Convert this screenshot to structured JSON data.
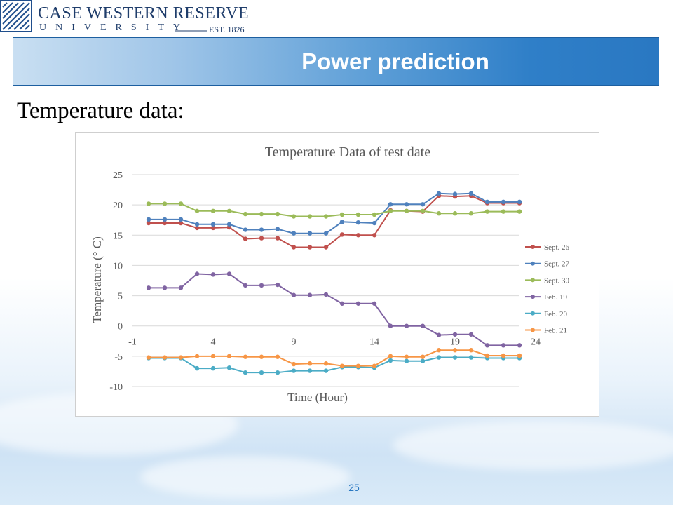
{
  "header": {
    "logo_line1": "CASE WESTERN RESERVE",
    "logo_line2": "UNIVERSITY",
    "logo_est": "EST. 1826",
    "logo_icon": "shield-emblem-icon"
  },
  "slide": {
    "title": "Power prediction",
    "subtitle": "Temperature data:",
    "page_number": "25"
  },
  "colors": {
    "banner_text": "#ffffff",
    "page_number": "#2a78c2",
    "Sept. 26": "#c0504d",
    "Sept. 27": "#4f81bd",
    "Sept. 30": "#9bbb59",
    "Feb. 19": "#8064a2",
    "Feb. 20": "#4bacc6",
    "Feb. 21": "#f79646"
  },
  "chart_data": {
    "type": "line",
    "title": "Temperature Data of test date",
    "xlabel": "Time (Hour)",
    "ylabel": "Temperature (° C)",
    "ylim": [
      -10,
      25
    ],
    "yticks": [
      "25",
      "20",
      "15",
      "10",
      "5",
      "0",
      "-5",
      "-10"
    ],
    "xtick_labels": [
      "-1",
      "4",
      "9",
      "14",
      "19",
      "24"
    ],
    "xtick_hours": [
      -1,
      4,
      9,
      14,
      19,
      24
    ],
    "x": [
      0,
      1,
      2,
      3,
      4,
      5,
      6,
      7,
      8,
      9,
      10,
      11,
      12,
      13,
      14,
      15,
      16,
      17,
      18,
      19,
      20,
      21,
      22,
      23
    ],
    "grid": true,
    "legend_position": "right",
    "series": [
      {
        "name": "Sept. 26",
        "values": [
          17.0,
          17.0,
          17.0,
          16.2,
          16.2,
          16.3,
          14.4,
          14.5,
          14.5,
          13.0,
          13.0,
          13.0,
          15.1,
          15.0,
          15.0,
          19.1,
          19.0,
          18.9,
          21.5,
          21.4,
          21.5,
          20.3,
          20.3,
          20.3
        ]
      },
      {
        "name": "Sept. 27",
        "values": [
          17.6,
          17.6,
          17.6,
          16.8,
          16.8,
          16.8,
          15.9,
          15.9,
          16.0,
          15.3,
          15.3,
          15.3,
          17.2,
          17.1,
          17.0,
          20.1,
          20.1,
          20.1,
          21.9,
          21.8,
          21.9,
          20.5,
          20.5,
          20.5
        ]
      },
      {
        "name": "Sept. 30",
        "values": [
          20.2,
          20.2,
          20.2,
          19.0,
          19.0,
          19.0,
          18.5,
          18.5,
          18.5,
          18.1,
          18.1,
          18.1,
          18.4,
          18.4,
          18.4,
          19.0,
          19.0,
          19.0,
          18.6,
          18.6,
          18.6,
          18.9,
          18.9,
          18.9
        ]
      },
      {
        "name": "Feb. 19",
        "values": [
          6.3,
          6.3,
          6.3,
          8.6,
          8.5,
          8.6,
          6.7,
          6.7,
          6.8,
          5.1,
          5.1,
          5.2,
          3.7,
          3.7,
          3.7,
          0.0,
          0.0,
          0.0,
          -1.5,
          -1.4,
          -1.4,
          -3.2,
          -3.2,
          -3.2
        ]
      },
      {
        "name": "Feb. 20",
        "values": [
          -5.3,
          -5.3,
          -5.3,
          -7.0,
          -7.0,
          -6.9,
          -7.7,
          -7.7,
          -7.7,
          -7.4,
          -7.4,
          -7.4,
          -6.8,
          -6.8,
          -6.9,
          -5.7,
          -5.8,
          -5.8,
          -5.2,
          -5.2,
          -5.2,
          -5.3,
          -5.3,
          -5.3
        ]
      },
      {
        "name": "Feb. 21",
        "values": [
          -5.2,
          -5.2,
          -5.2,
          -5.0,
          -5.0,
          -5.0,
          -5.1,
          -5.1,
          -5.1,
          -6.3,
          -6.2,
          -6.2,
          -6.6,
          -6.6,
          -6.6,
          -5.0,
          -5.1,
          -5.1,
          -4.0,
          -4.0,
          -4.0,
          -4.9,
          -4.9,
          -4.9
        ]
      }
    ]
  }
}
